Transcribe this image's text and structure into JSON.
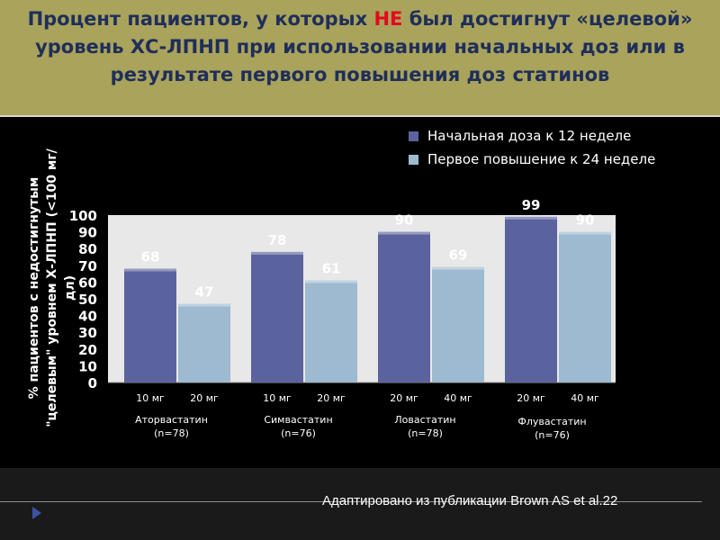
{
  "header": {
    "title_part1": "Процент пациентов, у которых ",
    "title_highlight": "НЕ",
    "title_part2": " был достигнут «целевой» уровень ХС-ЛПНП при использовании начальных доз или в результате первого повышения доз статинов"
  },
  "footer": {
    "source": "Адаптировано из публикации Brown AS et al.22"
  },
  "colors": {
    "header_bg": "#a9a35b",
    "title_text": "#1f2e5a",
    "highlight": "#e3081f",
    "series1": "#5b639e",
    "series2": "#9dbad0",
    "plot_bg": "#e8e8e8"
  },
  "chart_data": {
    "type": "bar",
    "ylabel": "% пациентов с недостигнутым \"целевым\" уровнем Х-ЛПНП (<100 мг/дл)",
    "ylim": [
      0,
      100
    ],
    "yticks": [
      0,
      10,
      20,
      30,
      40,
      50,
      60,
      70,
      80,
      90,
      100
    ],
    "legend_position": "top-right",
    "series": [
      {
        "name": "Начальная доза к 12 неделе",
        "values": [
          68,
          78,
          90,
          99
        ],
        "doses": [
          "10 мг",
          "10 мг",
          "20 мг",
          "20 мг"
        ]
      },
      {
        "name": "Первое повышение к 24 неделе",
        "values": [
          47,
          61,
          69,
          90
        ],
        "doses": [
          "20 мг",
          "20 мг",
          "40 мг",
          "40 мг"
        ]
      }
    ],
    "groups": [
      {
        "drug": "Аторвастатин",
        "n": "(n=78)"
      },
      {
        "drug": "Симвастатин",
        "n": "(n=76)"
      },
      {
        "drug": "Ловастатин",
        "n": "(n=78)"
      },
      {
        "drug": "Флувастатин",
        "n": "(n=76)"
      }
    ]
  }
}
